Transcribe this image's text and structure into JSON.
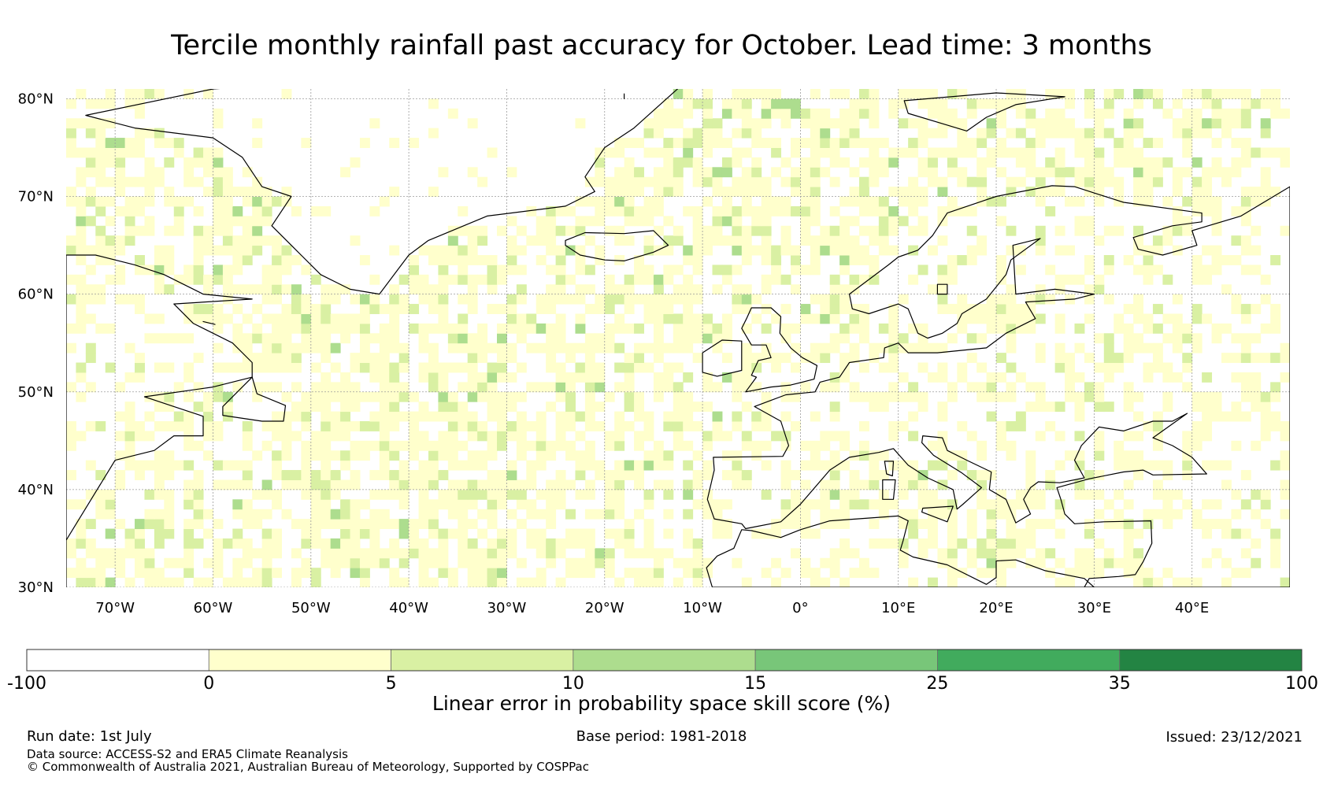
{
  "title": "Tercile monthly rainfall past accuracy for October. Lead time: 3 months",
  "map": {
    "projection": "equirectangular",
    "lon_range": [
      -75,
      50
    ],
    "lat_range": [
      30,
      81
    ],
    "lat_ticks": [
      {
        "value": 80,
        "label": "80°N"
      },
      {
        "value": 70,
        "label": "70°N"
      },
      {
        "value": 60,
        "label": "60°N"
      },
      {
        "value": 50,
        "label": "50°N"
      },
      {
        "value": 40,
        "label": "40°N"
      },
      {
        "value": 30,
        "label": "30°N"
      }
    ],
    "lon_ticks": [
      {
        "value": -70,
        "label": "70°W"
      },
      {
        "value": -60,
        "label": "60°W"
      },
      {
        "value": -50,
        "label": "50°W"
      },
      {
        "value": -40,
        "label": "40°W"
      },
      {
        "value": -30,
        "label": "30°W"
      },
      {
        "value": -20,
        "label": "20°W"
      },
      {
        "value": -10,
        "label": "10°W"
      },
      {
        "value": 0,
        "label": "0°"
      },
      {
        "value": 10,
        "label": "10°E"
      },
      {
        "value": 20,
        "label": "20°E"
      },
      {
        "value": 30,
        "label": "30°E"
      },
      {
        "value": 40,
        "label": "40°E"
      }
    ],
    "gridlines": true,
    "field": "LEPS skill score, mostly in the 0–10% range, with patches of 10–15%"
  },
  "colorbar": {
    "label": "Linear error in probability space skill score (%)",
    "ticks": [
      "-100",
      "0",
      "5",
      "10",
      "15",
      "25",
      "35",
      "100"
    ],
    "colors": [
      "#ffffff",
      "#ffffcc",
      "#d9f0a3",
      "#addd8e",
      "#78c679",
      "#41ab5d",
      "#238443"
    ]
  },
  "footer": {
    "run_date": "Run date: 1st July",
    "base_period": "Base period: 1981-2018",
    "issued": "Issued: 23/12/2021",
    "data_source": "Data source: ACCESS-S2 and ERA5 Climate Reanalysis",
    "copyright": "© Commonwealth of Australia 2021, Australian Bureau of Meteorology, Supported by COSPPac"
  }
}
